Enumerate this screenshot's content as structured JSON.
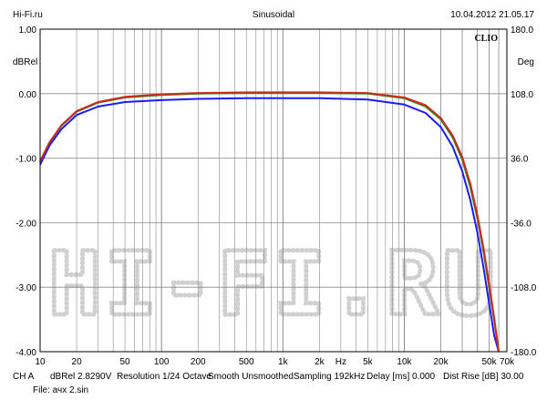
{
  "header": {
    "left": "Hi-Fi.ru",
    "center": "Sinusoidal",
    "right": "10.04.2012 21.05.17"
  },
  "brand": "CLIO",
  "watermark": "HI-FI.RU",
  "footer": {
    "line1": [
      "CH A",
      "dBRel 2.8290V",
      "Resolution 1/24 Octave",
      "Smooth Unsmoothed",
      "Sampling 192kHz",
      "Delay [ms] 0.000",
      "Dist Rise [dB] 30.00"
    ],
    "line2": "File: ачх 2.sin"
  },
  "chart_data": {
    "type": "line",
    "title": "Sinusoidal",
    "xlabel": "Hz",
    "ylabel_left": "dBRel",
    "ylabel_right": "Deg",
    "xscale": "log",
    "xlim": [
      10,
      70000
    ],
    "ylim": [
      -4.0,
      1.0
    ],
    "ylim_right": [
      -180.0,
      180.0
    ],
    "grid": true,
    "x_ticks": [
      "10",
      "20",
      "50",
      "100",
      "200",
      "500",
      "1k",
      "2k",
      "Hz",
      "5k",
      "10k",
      "20k",
      "50k",
      "70k"
    ],
    "x_tick_values": [
      10,
      20,
      50,
      100,
      200,
      500,
      1000,
      2000,
      3000,
      5000,
      10000,
      20000,
      50000,
      70000
    ],
    "y_ticks_left": [
      "1.00",
      "0.00",
      "-1.00",
      "-2.00",
      "-3.00",
      "-4.00"
    ],
    "y_tick_values_left": [
      1,
      0,
      -1,
      -2,
      -3,
      -4
    ],
    "y_ticks_right": [
      "180.0",
      "108.0",
      "36.0",
      "-36.0",
      "-108.0",
      "-180.0"
    ],
    "series": [
      {
        "color": "#1a1aff",
        "x": [
          10,
          12,
          15,
          20,
          30,
          50,
          100,
          200,
          500,
          1000,
          2000,
          5000,
          10000,
          15000,
          20000,
          25000,
          30000,
          35000,
          40000,
          45000,
          50000,
          55000,
          60000
        ],
        "y": [
          -1.1,
          -0.8,
          -0.55,
          -0.33,
          -0.2,
          -0.13,
          -0.1,
          -0.08,
          -0.07,
          -0.07,
          -0.07,
          -0.09,
          -0.17,
          -0.3,
          -0.52,
          -0.82,
          -1.2,
          -1.65,
          -2.15,
          -2.7,
          -3.25,
          -3.75,
          -4.0
        ]
      },
      {
        "color": "#2e8b2e",
        "x": [
          10,
          12,
          15,
          20,
          30,
          50,
          100,
          200,
          500,
          1000,
          2000,
          5000,
          10000,
          15000,
          20000,
          25000,
          30000,
          35000,
          40000,
          45000,
          50000,
          55000,
          60000
        ],
        "y": [
          -1.05,
          -0.75,
          -0.5,
          -0.28,
          -0.14,
          -0.06,
          -0.02,
          0.0,
          0.01,
          0.01,
          0.01,
          0.0,
          -0.07,
          -0.2,
          -0.4,
          -0.68,
          -1.02,
          -1.45,
          -1.93,
          -2.45,
          -3.0,
          -3.52,
          -4.0
        ]
      },
      {
        "color": "#cc2a1a",
        "x": [
          10,
          12,
          15,
          20,
          30,
          50,
          100,
          200,
          500,
          1000,
          2000,
          5000,
          10000,
          15000,
          20000,
          25000,
          30000,
          35000,
          40000,
          45000,
          50000,
          55000,
          60000
        ],
        "y": [
          -1.05,
          -0.75,
          -0.49,
          -0.27,
          -0.13,
          -0.05,
          -0.01,
          0.01,
          0.02,
          0.02,
          0.02,
          0.01,
          -0.06,
          -0.18,
          -0.38,
          -0.65,
          -0.98,
          -1.4,
          -1.88,
          -2.4,
          -2.95,
          -3.48,
          -4.0
        ]
      }
    ]
  }
}
